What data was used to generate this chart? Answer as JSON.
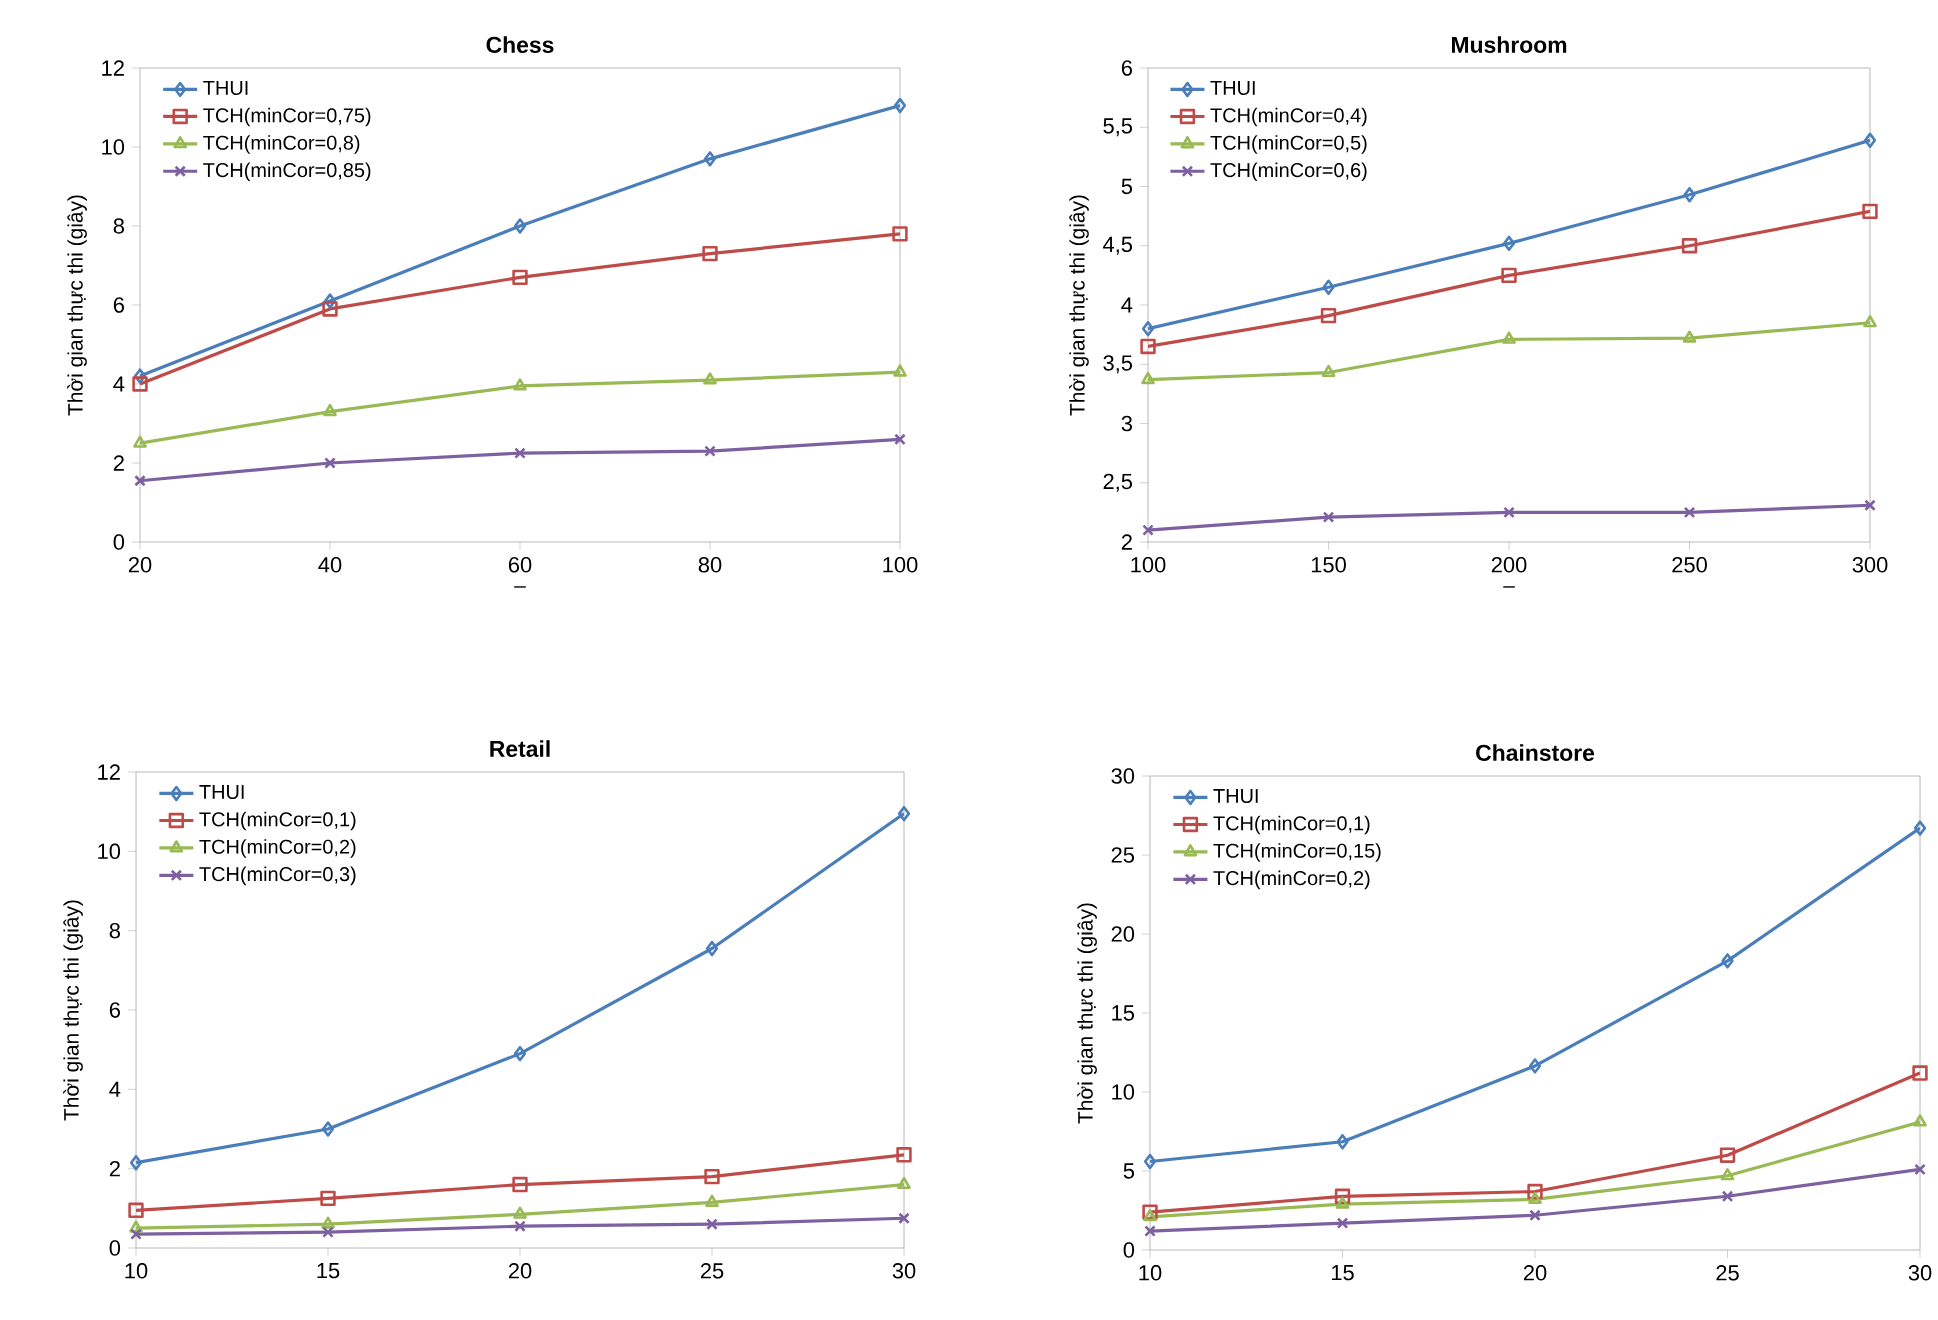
{
  "chart_data": [
    {
      "type": "line",
      "title": "Chess",
      "xlabel": "–",
      "ylabel": "Thời gian thực thi (giây)",
      "legend": "top left",
      "grid": false,
      "x": [
        20,
        40,
        60,
        80,
        100
      ],
      "xlim": [
        20,
        100
      ],
      "xticks": [
        20,
        40,
        60,
        80,
        100
      ],
      "ylim": [
        0,
        12
      ],
      "yticks": [
        0,
        2,
        4,
        6,
        8,
        10,
        12
      ],
      "series": [
        {
          "name": "THUI",
          "color": "#4a7ebb",
          "marker": "diamond",
          "values": [
            4.2,
            6.1,
            8.0,
            9.7,
            11.05
          ]
        },
        {
          "name": "TCH(minCor=0,75)",
          "color": "#be4b48",
          "marker": "square",
          "values": [
            4.0,
            5.9,
            6.7,
            7.3,
            7.8
          ]
        },
        {
          "name": "TCH(minCor=0,8)",
          "color": "#98b954",
          "marker": "triangle",
          "values": [
            2.5,
            3.3,
            3.95,
            4.1,
            4.3
          ]
        },
        {
          "name": "TCH(minCor=0,85)",
          "color": "#7d60a0",
          "marker": "cross",
          "values": [
            1.55,
            2.0,
            2.25,
            2.3,
            2.6
          ]
        }
      ]
    },
    {
      "type": "line",
      "title": "Mushroom",
      "xlabel": "–",
      "ylabel": "Thời gian thực thi (giây)",
      "legend": "top left",
      "grid": false,
      "x": [
        100,
        150,
        200,
        250,
        300
      ],
      "xlim": [
        100,
        300
      ],
      "xticks": [
        100,
        150,
        200,
        250,
        300
      ],
      "ylim": [
        2,
        6
      ],
      "yticks": [
        2,
        {
          "value": 2.5,
          "label": "2,5"
        },
        3,
        {
          "value": 3.5,
          "label": "3,5"
        },
        4,
        {
          "value": 4.5,
          "label": "4,5"
        },
        5,
        {
          "value": 5.5,
          "label": "5,5"
        },
        6
      ],
      "series": [
        {
          "name": "THUI",
          "color": "#4a7ebb",
          "marker": "diamond",
          "values": [
            3.8,
            4.15,
            4.52,
            4.93,
            5.39
          ]
        },
        {
          "name": "TCH(minCor=0,4)",
          "color": "#be4b48",
          "marker": "square",
          "values": [
            3.65,
            3.91,
            4.25,
            4.5,
            4.79
          ]
        },
        {
          "name": "TCH(minCor=0,5)",
          "color": "#98b954",
          "marker": "triangle",
          "values": [
            3.37,
            3.43,
            3.71,
            3.72,
            3.85
          ]
        },
        {
          "name": "TCH(minCor=0,6)",
          "color": "#7d60a0",
          "marker": "cross",
          "values": [
            2.1,
            2.21,
            2.25,
            2.25,
            2.31
          ]
        }
      ]
    },
    {
      "type": "line",
      "title": "Retail",
      "ylabel": "Thời gian thực thi (giây)",
      "legend": "top left",
      "grid": false,
      "x": [
        10,
        15,
        20,
        25,
        30
      ],
      "xlim": [
        10,
        30
      ],
      "xticks": [
        10,
        15,
        20,
        25,
        30
      ],
      "ylim": [
        0,
        12
      ],
      "yticks": [
        0,
        2,
        4,
        6,
        8,
        10,
        12
      ],
      "series": [
        {
          "name": "THUI",
          "color": "#4a7ebb",
          "marker": "diamond",
          "values": [
            2.15,
            3.0,
            4.9,
            7.55,
            10.95
          ]
        },
        {
          "name": "TCH(minCor=0,1)",
          "color": "#be4b48",
          "marker": "square",
          "values": [
            0.95,
            1.25,
            1.6,
            1.8,
            2.35
          ]
        },
        {
          "name": "TCH(minCor=0,2)",
          "color": "#98b954",
          "marker": "triangle",
          "values": [
            0.5,
            0.6,
            0.85,
            1.15,
            1.6
          ]
        },
        {
          "name": "TCH(minCor=0,3)",
          "color": "#7d60a0",
          "marker": "cross",
          "values": [
            0.35,
            0.4,
            0.55,
            0.6,
            0.75
          ]
        }
      ]
    },
    {
      "type": "line",
      "title": "Chainstore",
      "ylabel": "Thời gian thực thi (giây)",
      "legend": "top left",
      "grid": false,
      "x": [
        10,
        15,
        20,
        25,
        30
      ],
      "xlim": [
        10,
        30
      ],
      "xticks": [
        10,
        15,
        20,
        25,
        30
      ],
      "ylim": [
        0,
        30
      ],
      "yticks": [
        0,
        5,
        10,
        15,
        20,
        25,
        30
      ],
      "series": [
        {
          "name": "THUI",
          "color": "#4a7ebb",
          "marker": "diamond",
          "values": [
            5.6,
            6.85,
            11.65,
            18.3,
            26.7
          ]
        },
        {
          "name": "TCH(minCor=0,1)",
          "color": "#be4b48",
          "marker": "square",
          "values": [
            2.4,
            3.4,
            3.7,
            6.0,
            11.2
          ]
        },
        {
          "name": "TCH(minCor=0,15)",
          "color": "#98b954",
          "marker": "triangle",
          "values": [
            2.1,
            2.9,
            3.2,
            4.7,
            8.1
          ]
        },
        {
          "name": "TCH(minCor=0,2)",
          "color": "#7d60a0",
          "marker": "cross",
          "values": [
            1.2,
            1.7,
            2.2,
            3.4,
            5.1
          ]
        }
      ]
    }
  ]
}
